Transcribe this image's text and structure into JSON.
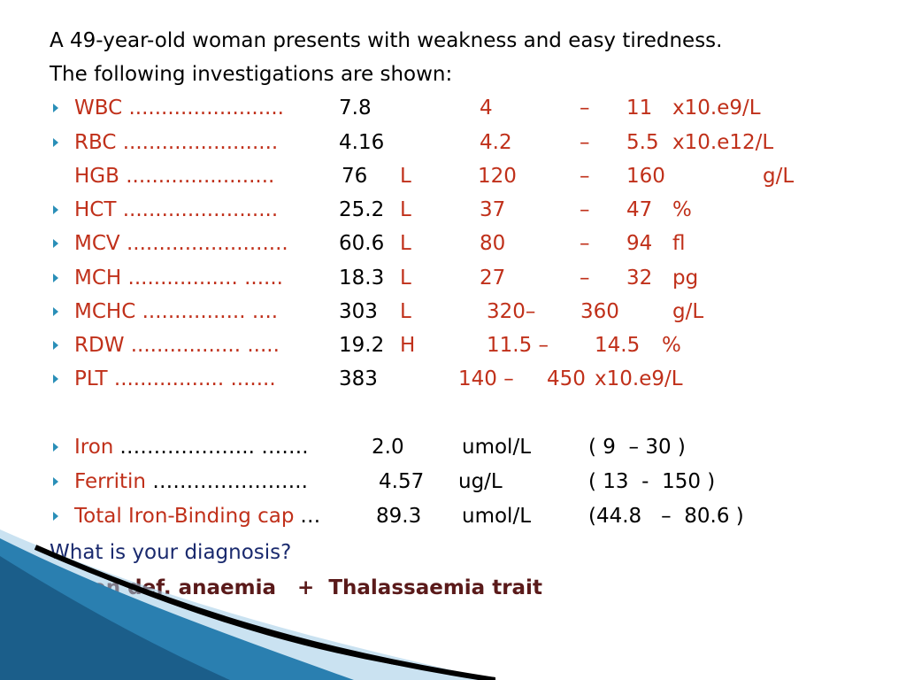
{
  "intro": {
    "line1": "A 49-year-old woman presents with weakness and easy tiredness.",
    "line2": "The following investigations are shown:"
  },
  "cbc_rows": [
    {
      "label": "WBC ........................",
      "value": "7.8",
      "flag": "",
      "low": "4",
      "dash": "–",
      "high": "11",
      "unit": "x10.e9/L"
    },
    {
      "label": "RBC ........................",
      "value": "4.16",
      "flag": "",
      "low": "4.2",
      "dash": "–",
      "high": "5.5",
      "unit": "x10.e12/L"
    },
    {
      "label": "HGB .......................",
      "value": "76",
      "flag": "L",
      "low": "120",
      "dash": "–",
      "high": "160",
      "unit": "g/L"
    },
    {
      "label": "HCT ........................",
      "value": "25.2",
      "flag": "L",
      "low": "37",
      "dash": "–",
      "high": "47",
      "unit": "%"
    },
    {
      "label": "MCV .........................",
      "value": "60.6",
      "flag": "L",
      "low": "80",
      "dash": "–",
      "high": "94",
      "unit": "fl"
    },
    {
      "label": "MCH ................. ......",
      "value": "18.3",
      "flag": "L",
      "low": "27",
      "dash": "–",
      "high": "32",
      "unit": "pg"
    },
    {
      "label": "MCHC ................ ....",
      "value": "303",
      "flag": "L",
      "low": "320–",
      "dash": "",
      "high": "360",
      "unit": "g/L"
    },
    {
      "label": "RDW ................. .....",
      "value": "19.2",
      "flag": "H",
      "low": "11.5 –",
      "dash": "",
      "high": "14.5",
      "unit": "%"
    },
    {
      "label": "PLT ................. .......",
      "value": "383",
      "flag": "",
      "low": "140 –",
      "dash": "",
      "high": "450",
      "unit": "x10.e9/L"
    }
  ],
  "iron_rows": [
    {
      "label": "Iron",
      "dots": " ……………….. …….",
      "value": "2.0",
      "unit": "umol/L",
      "range": "( 9  – 30 )"
    },
    {
      "label": "Ferritin",
      "dots": " ………………….. ",
      "value": "4.57",
      "unit": "ug/L",
      "range": "( 13  -  150 )"
    },
    {
      "label": "Total Iron-Binding cap",
      "dots": " …",
      "value": "89.3",
      "unit": "umol/L",
      "range": "(44.8   –  80.6 )"
    }
  ],
  "question": "What is your diagnosis?",
  "answer": "Iron def. anaemia   +  Thalassaemia trait",
  "colors": {
    "text": "#000000",
    "label_red": "#c0301a",
    "question_navy": "#1a2a6e",
    "answer_maroon": "#5a1a1a",
    "bullet": "#2a8fb8",
    "deco_blue": "#2a7fb0"
  },
  "icons": {
    "bullet": "triangle-bullet-icon"
  }
}
